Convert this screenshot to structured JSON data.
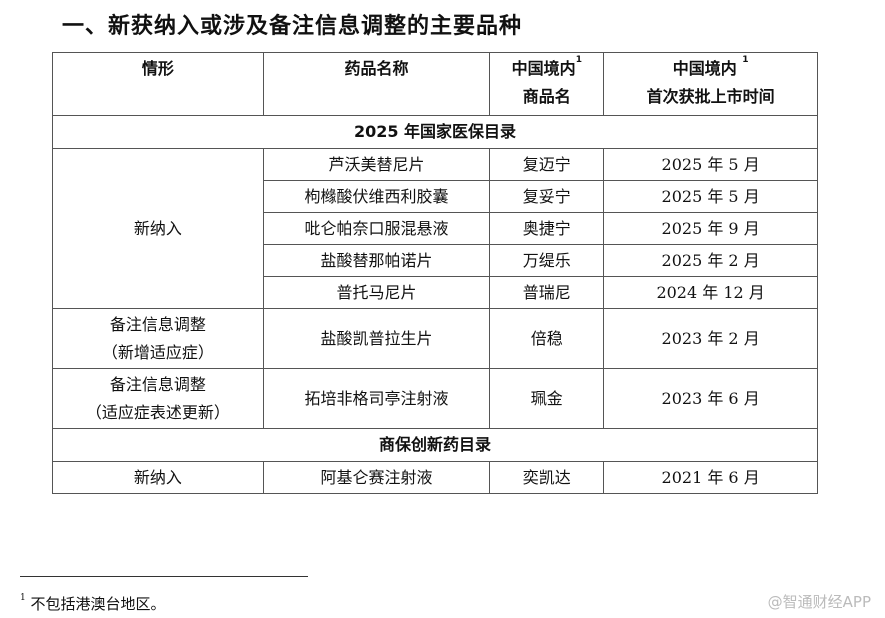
{
  "title": "一、新获纳入或涉及备注信息调整的主要品种",
  "headers": {
    "situation": "情形",
    "drug": "药品名称",
    "brand_line1": "中国境内",
    "brand_line2": "商品名",
    "approval_line1": "中国境内",
    "approval_line2": "首次获批上市时间",
    "footnote_mark": "1"
  },
  "sections": [
    {
      "title": "2025 年国家医保目录"
    },
    {
      "title": "商保创新药目录"
    }
  ],
  "rows": [
    {
      "drug": "芦沃美替尼片",
      "brand": "复迈宁",
      "date": "2025 年 5 月"
    },
    {
      "drug": "枸橼酸伏维西利胶囊",
      "brand": "复妥宁",
      "date": "2025 年 5 月"
    },
    {
      "drug": "吡仑帕奈口服混悬液",
      "brand": "奥捷宁",
      "date": "2025 年 9 月"
    },
    {
      "drug": "盐酸替那帕诺片",
      "brand": "万缇乐",
      "date": "2025 年 2 月"
    },
    {
      "drug": "普托马尼片",
      "brand": "普瑞尼",
      "date": "2024 年 12 月"
    },
    {
      "drug": "盐酸凯普拉生片",
      "brand": "倍稳",
      "date": "2023 年 2 月"
    },
    {
      "drug": "拓培非格司亭注射液",
      "brand": "珮金",
      "date": "2023 年 6 月"
    },
    {
      "drug": "阿基仑赛注射液",
      "brand": "奕凯达",
      "date": "2021 年 6 月"
    }
  ],
  "situations": {
    "new": "新纳入",
    "note1_line1": "备注信息调整",
    "note1_line2": "（新增适应症）",
    "note2_line1": "备注信息调整",
    "note2_line2": "（适应症表述更新）",
    "new2": "新纳入"
  },
  "footnote": {
    "mark": "1",
    "text": "不包括港澳台地区。"
  },
  "watermark": "@智通财经APP"
}
